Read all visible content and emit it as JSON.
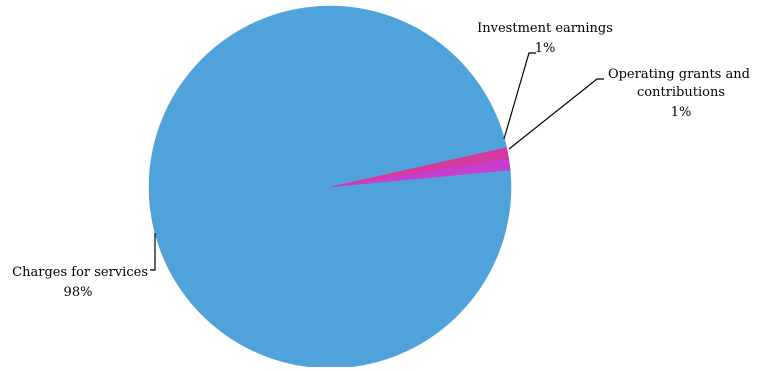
{
  "chart_data": {
    "type": "pie",
    "title": "",
    "slices": [
      {
        "label": "Charges for services",
        "value": 98,
        "value_label": "98%",
        "color": "#4FA3DA"
      },
      {
        "label": "Investment earnings",
        "value": 1,
        "value_label": "1%",
        "color": "#D63A9E"
      },
      {
        "label": "Operating grants and contributions",
        "value": 1,
        "value_label": "1%",
        "color": "#C53ED0"
      }
    ],
    "legend": "none",
    "labels": "outside with leader lines"
  }
}
